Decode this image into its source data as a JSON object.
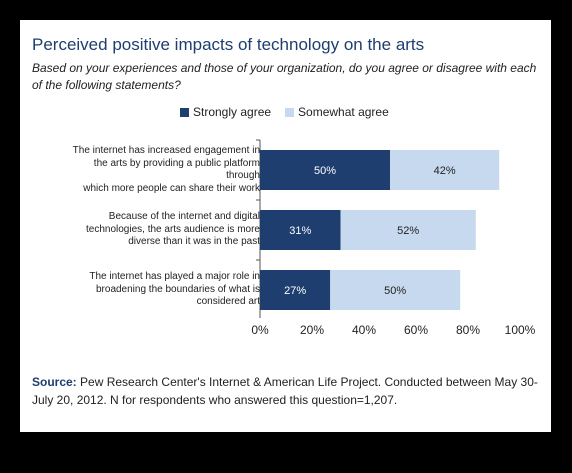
{
  "title": "Perceived positive impacts of technology on the arts",
  "subtitle": "Based on your experiences and those of your organization, do you agree or disagree with each of the following statements?",
  "legend": [
    {
      "name": "Strongly agree",
      "color": "#1d3e6e"
    },
    {
      "name": "Somewhat agree",
      "color": "#c7d9ee"
    }
  ],
  "source": {
    "label": "Source:",
    "text": "Pew Research Center's Internet & American Life Project. Conducted between May 30-July 20, 2012. N for respondents who answered this question=1,207."
  },
  "chart_data": {
    "type": "bar",
    "orientation": "horizontal",
    "stacked": true,
    "categories": [
      "The internet has increased engagement in the arts by providing a public platform through which more people can share their work",
      "Because of the internet and digital technologies, the arts audience is more diverse than it was in the past",
      "The internet has played a major role in broadening the boundaries of what is considered art"
    ],
    "category_lines": [
      [
        "The internet has increased engagement in",
        "the arts by providing a public platform",
        "through",
        "which more people can share their work"
      ],
      [
        "Because of the internet and digital",
        "technologies, the arts audience is more",
        "diverse than it was in the past"
      ],
      [
        "The internet has played a major role in",
        "broadening the boundaries of what is",
        "considered art"
      ]
    ],
    "series": [
      {
        "name": "Strongly agree",
        "values": [
          50,
          31,
          27
        ],
        "labels": [
          "50%",
          "31%",
          "27%"
        ]
      },
      {
        "name": "Somewhat agree",
        "values": [
          42,
          52,
          50
        ],
        "labels": [
          "42%",
          "52%",
          "50%"
        ]
      }
    ],
    "xlim": [
      0,
      100
    ],
    "xticks": [
      "0%",
      "20%",
      "40%",
      "60%",
      "80%",
      "100%"
    ],
    "legend_position": "top",
    "grid": false
  }
}
